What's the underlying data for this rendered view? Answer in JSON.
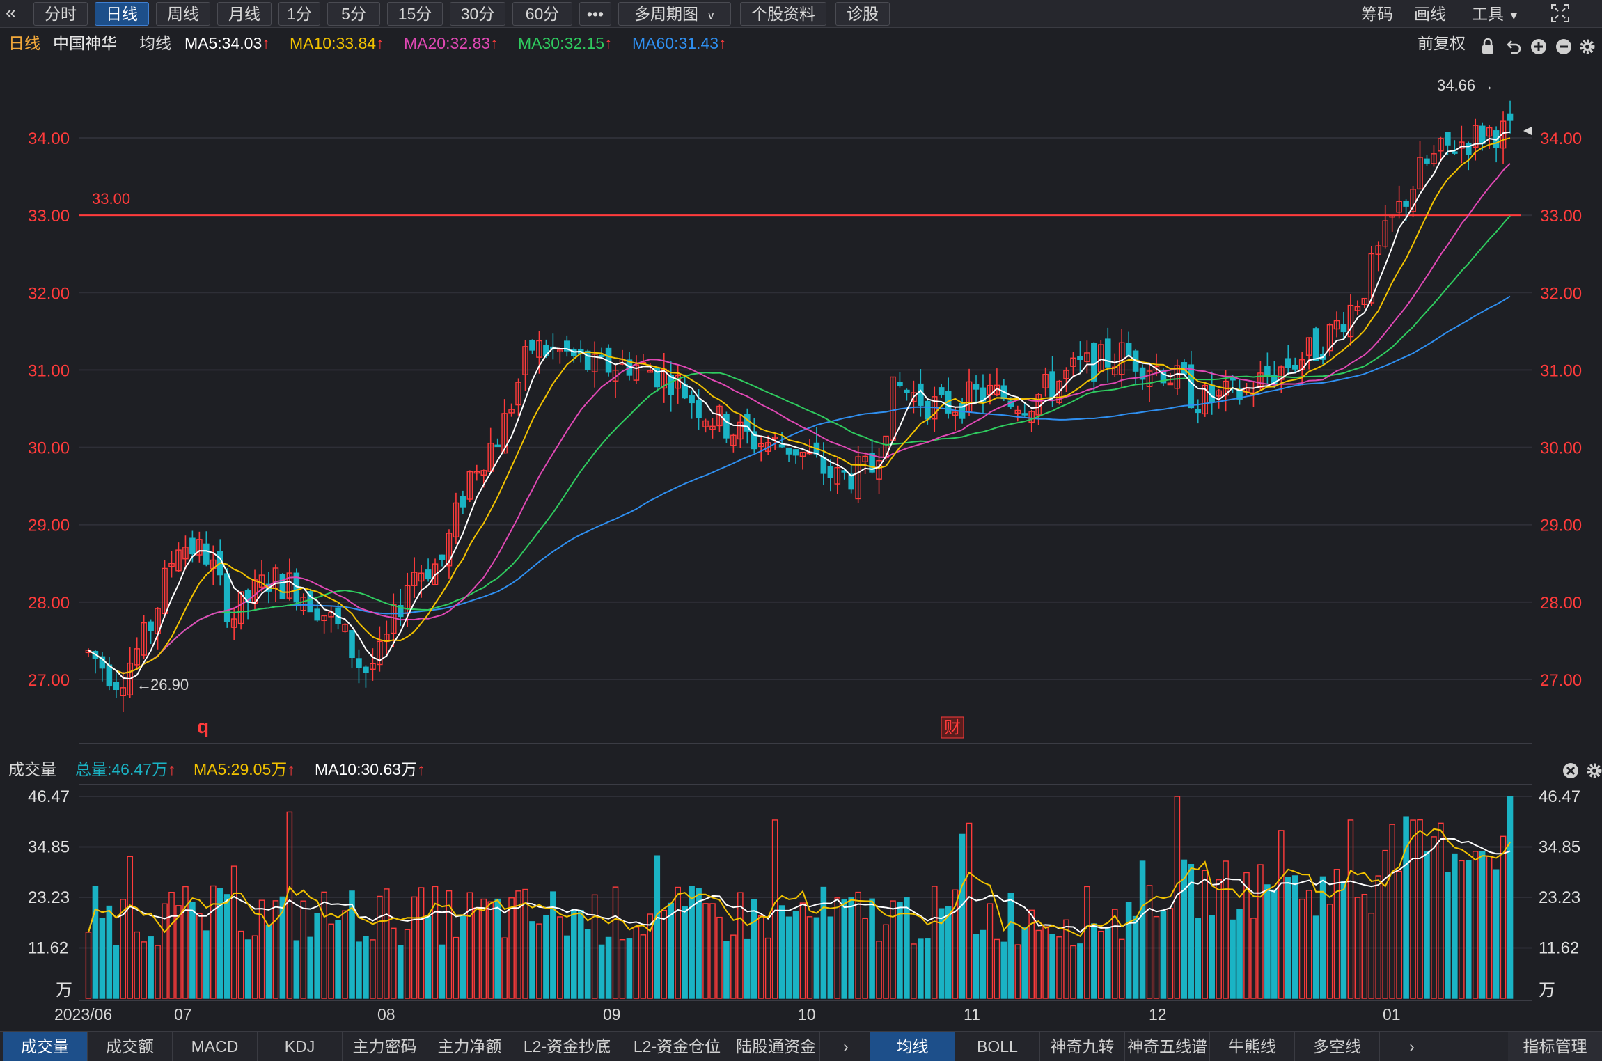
{
  "toolbar": {
    "back_icon": "double-chevron-left-icon",
    "periods": [
      "分时",
      "日线",
      "周线",
      "月线",
      "1分",
      "5分",
      "15分",
      "30分",
      "60分"
    ],
    "active_period": "日线",
    "more_label": "•••",
    "multi_period_label": "多周期图",
    "stock_info_label": "个股资料",
    "diagnose_label": "诊股",
    "chips_label": "筹码",
    "draw_label": "画线",
    "tools_label": "工具",
    "fullscreen_icon": "fullscreen-icon"
  },
  "legend": {
    "period": "日线",
    "stock_name": "中国神华",
    "ma_label": "均线",
    "ma5": "MA5:34.03",
    "ma10": "MA10:33.84",
    "ma20": "MA20:32.83",
    "ma30": "MA30:32.15",
    "ma60": "MA60:31.43",
    "up_arrow": "↑",
    "adjust_label": "前复权",
    "lock_icon": "lock-icon",
    "undo_icon": "undo-icon",
    "plus_icon": "zoom-in-icon",
    "minus_icon": "zoom-out-icon",
    "settings_icon": "gear-icon"
  },
  "colors": {
    "up": "#ff3b3b",
    "down": "#1ab3c4",
    "ma5": "#ffffff",
    "ma10": "#f2c200",
    "ma20": "#e048b4",
    "ma30": "#2fcb5f",
    "ma60": "#2f8ff0",
    "grid": "#2e2f37",
    "axis_text": "#ff3b3b",
    "vol_axis_text": "#e0e0e0"
  },
  "price_axis": {
    "ticks": [
      "34.00",
      "33.00",
      "32.00",
      "31.00",
      "30.00",
      "29.00",
      "28.00",
      "27.00"
    ],
    "ref_line_label": "33.00",
    "high_label": "34.66",
    "low_label": "26.90",
    "marker_q": "q",
    "marker_cai": "财"
  },
  "volume": {
    "title": "成交量",
    "total": "总量:46.47万",
    "ma5": "MA5:29.05万",
    "ma10": "MA10:30.63万",
    "up_arrow": "↑",
    "axis": [
      "46.47",
      "34.85",
      "23.23",
      "11.62",
      "万"
    ],
    "close_icon": "close-icon",
    "settings_icon": "gear-icon"
  },
  "date_axis": [
    "2023/06",
    "07",
    "08",
    "09",
    "10",
    "11",
    "12",
    "01"
  ],
  "bottom_tabs_left": [
    "成交量",
    "成交额",
    "MACD",
    "KDJ",
    "主力密码",
    "主力净额",
    "L2-资金抄底",
    "L2-资金仓位",
    "陆股通资金"
  ],
  "bottom_tabs_right": [
    "均线",
    "BOLL",
    "神奇九转",
    "神奇五线谱",
    "牛熊线",
    "多空线"
  ],
  "bottom_more_label": "指标管理",
  "chart_data": {
    "type": "candlestick",
    "price_range": [
      26.4,
      34.9
    ],
    "volume_range": [
      0,
      46.47
    ],
    "reference_line": 33.0,
    "period_high": 34.66,
    "period_low": 26.9,
    "latest_ma": {
      "MA5": 34.03,
      "MA10": 33.84,
      "MA20": 32.83,
      "MA30": 32.15,
      "MA60": 31.43
    },
    "latest_volume": 46.47,
    "volume_ma": {
      "MA5": 29.05,
      "MA10": 30.63
    }
  }
}
